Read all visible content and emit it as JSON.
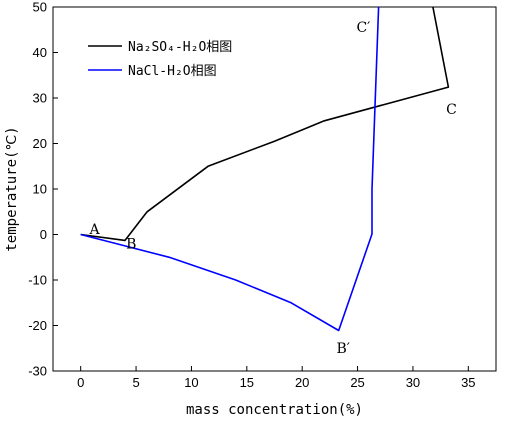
{
  "chart_data": {
    "type": "line",
    "xlabel": "mass concentration(%)",
    "ylabel": "temperature(℃)",
    "xlim": [
      -2.5,
      37.5
    ],
    "ylim": [
      -30,
      50
    ],
    "xticks": [
      0,
      5,
      10,
      15,
      20,
      25,
      30,
      35
    ],
    "yticks": [
      -30,
      -20,
      -10,
      0,
      10,
      20,
      30,
      40,
      50
    ],
    "legend_position": "top-left",
    "series": [
      {
        "name": "Na₂SO₄-H₂O相图",
        "color": "#000000",
        "points": [
          {
            "x": 0,
            "y": 0
          },
          {
            "x": 4.0,
            "y": -1.3
          },
          {
            "x": 6.0,
            "y": 5.0
          },
          {
            "x": 11.5,
            "y": 15.0
          },
          {
            "x": 17.5,
            "y": 20.5
          },
          {
            "x": 22.0,
            "y": 25.0
          },
          {
            "x": 33.2,
            "y": 32.4
          },
          {
            "x": 31.8,
            "y": 50.0
          }
        ]
      },
      {
        "name": "NaCl-H₂O相图",
        "color": "#0000ff",
        "points": [
          {
            "x": 0,
            "y": 0
          },
          {
            "x": 4.0,
            "y": -2.5
          },
          {
            "x": 8.0,
            "y": -5.0
          },
          {
            "x": 14.0,
            "y": -10.0
          },
          {
            "x": 19.0,
            "y": -15.0
          },
          {
            "x": 23.3,
            "y": -21.1
          },
          {
            "x": 26.3,
            "y": 0.1
          },
          {
            "x": 26.3,
            "y": 10.0
          },
          {
            "x": 26.9,
            "y": 50.0
          }
        ]
      }
    ],
    "annotations": [
      {
        "text": "A",
        "x": 0.8,
        "y": 0.1
      },
      {
        "text": "B",
        "x": 4.1,
        "y": -3.1
      },
      {
        "text": "C",
        "x": 33.0,
        "y": 26.5
      },
      {
        "text": "B′",
        "x": 23.1,
        "y": -26.0
      },
      {
        "text": "C′",
        "x": 24.9,
        "y": 44.5
      }
    ]
  }
}
